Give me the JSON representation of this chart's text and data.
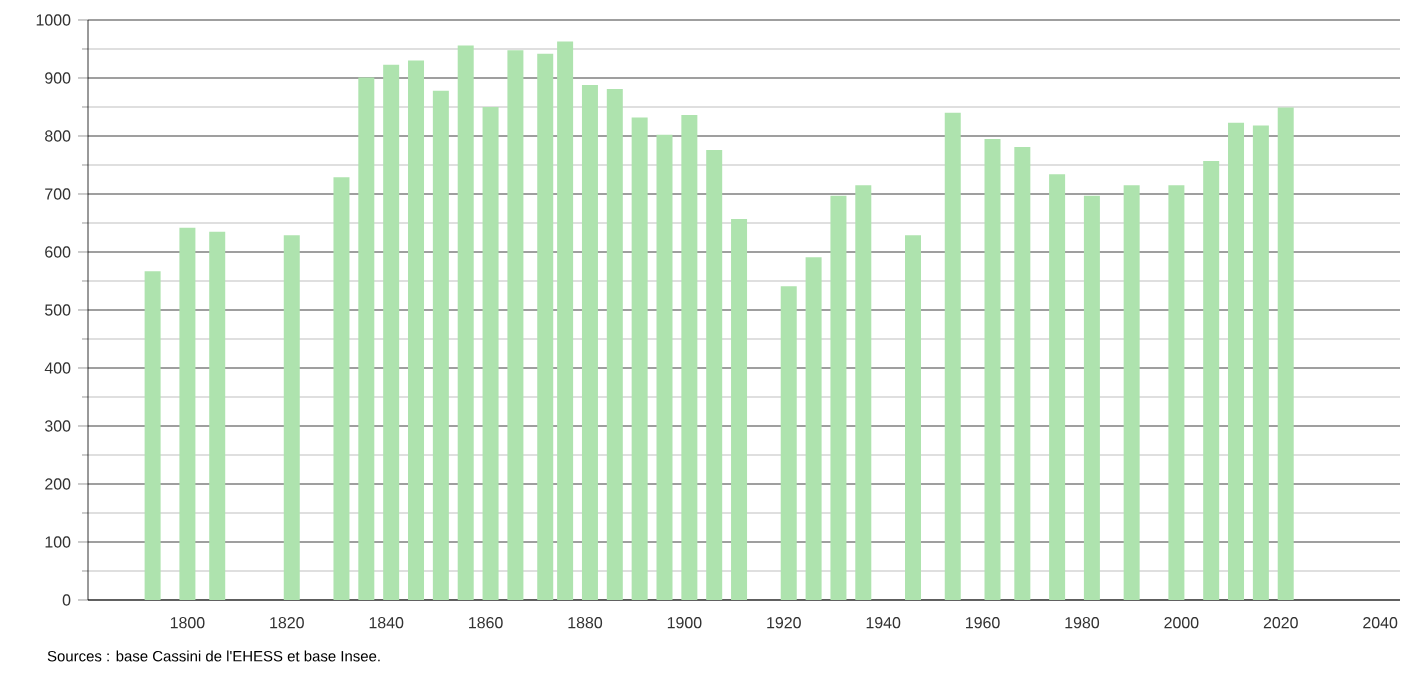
{
  "chart_data": {
    "type": "bar",
    "x": [
      1793,
      1800,
      1806,
      1821,
      1831,
      1836,
      1841,
      1846,
      1851,
      1856,
      1861,
      1866,
      1872,
      1876,
      1881,
      1886,
      1891,
      1896,
      1901,
      1906,
      1911,
      1921,
      1926,
      1931,
      1936,
      1946,
      1954,
      1962,
      1968,
      1975,
      1982,
      1990,
      1999,
      2006,
      2011,
      2016,
      2021
    ],
    "values": [
      567,
      642,
      635,
      629,
      729,
      901,
      923,
      930,
      878,
      956,
      850,
      948,
      942,
      963,
      888,
      881,
      832,
      802,
      836,
      776,
      657,
      541,
      591,
      697,
      715,
      629,
      840,
      795,
      781,
      734,
      697,
      715,
      715,
      757,
      823,
      818,
      849
    ],
    "color": "#aee3ae",
    "xlim": [
      1780,
      2044
    ],
    "xticks": [
      1800,
      1820,
      1840,
      1860,
      1880,
      1900,
      1920,
      1940,
      1960,
      1980,
      2000,
      2020,
      2040
    ],
    "ylim": [
      0,
      1000
    ],
    "yticks": [
      0,
      {
        "value": 50,
        "label": null
      },
      100,
      {
        "value": 150,
        "label": null
      },
      200,
      {
        "value": 250,
        "label": null
      },
      300,
      {
        "value": 350,
        "label": null
      },
      400,
      {
        "value": 450,
        "label": null
      },
      500,
      {
        "value": 550,
        "label": null
      },
      600,
      {
        "value": 650,
        "label": null
      },
      700,
      {
        "value": 750,
        "label": null
      },
      800,
      {
        "value": 850,
        "label": null
      },
      900,
      {
        "value": 950,
        "label": null
      },
      1000
    ],
    "grid": "y",
    "annotations": [
      "Sources : base Cassini de l'EHESS et base Insee."
    ]
  }
}
